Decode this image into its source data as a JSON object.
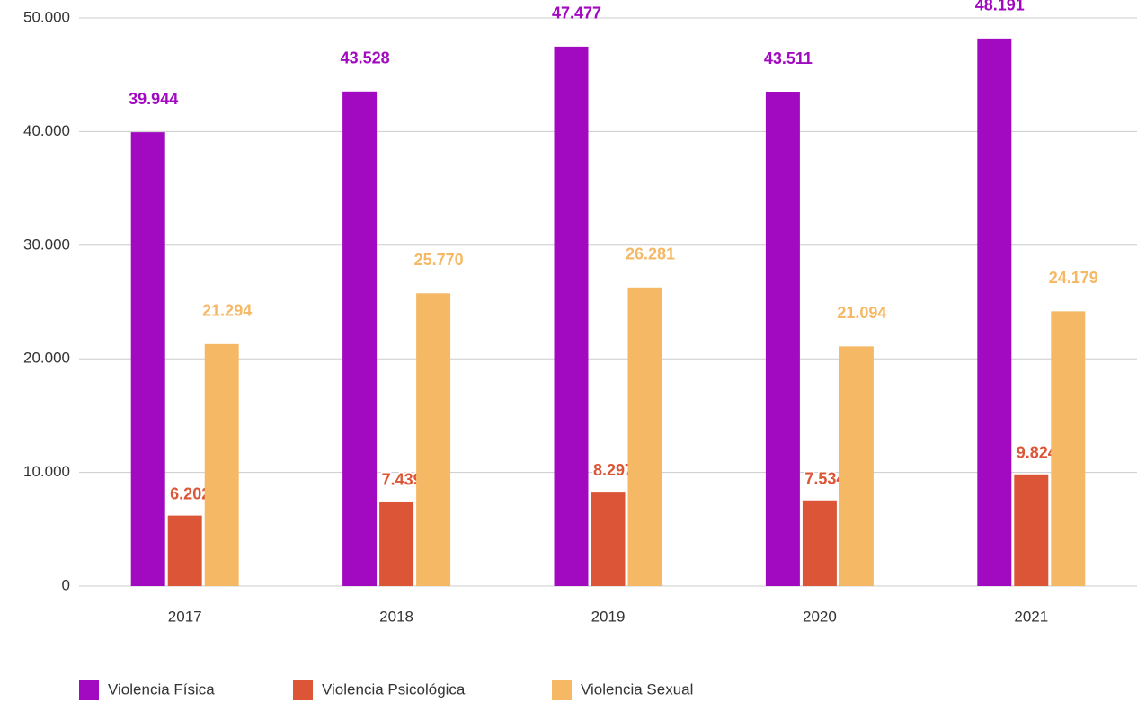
{
  "chart_data": {
    "type": "bar",
    "categories": [
      "2017",
      "2018",
      "2019",
      "2020",
      "2021"
    ],
    "series": [
      {
        "name": "Violencia Física",
        "color": "#a10ac0",
        "values": [
          39944,
          43528,
          47477,
          43511,
          48191
        ],
        "value_labels": [
          "39.944",
          "43.528",
          "47.477",
          "43.511",
          "48.191"
        ]
      },
      {
        "name": "Violencia Psicológica",
        "color": "#dc5536",
        "values": [
          6202,
          7439,
          8297,
          7534,
          9824
        ],
        "value_labels": [
          "6.202",
          "7.439",
          "8.297",
          "7.534",
          "9.824"
        ]
      },
      {
        "name": "Violencia Sexual",
        "color": "#f5b865",
        "values": [
          21294,
          25770,
          26281,
          21094,
          24179
        ],
        "value_labels": [
          "21.294",
          "25.770",
          "26.281",
          "21.094",
          "24.179"
        ]
      }
    ],
    "ylim": [
      0,
      50000
    ],
    "yticks": [
      0,
      {
        "value": 10000,
        "label": "10.000"
      },
      {
        "value": 20000,
        "label": "20.000"
      },
      {
        "value": 30000,
        "label": "30.000"
      },
      {
        "value": 40000,
        "label": "40.000"
      },
      {
        "value": 50000,
        "label": "50.000"
      }
    ],
    "grid": true,
    "legend": "bottom"
  }
}
